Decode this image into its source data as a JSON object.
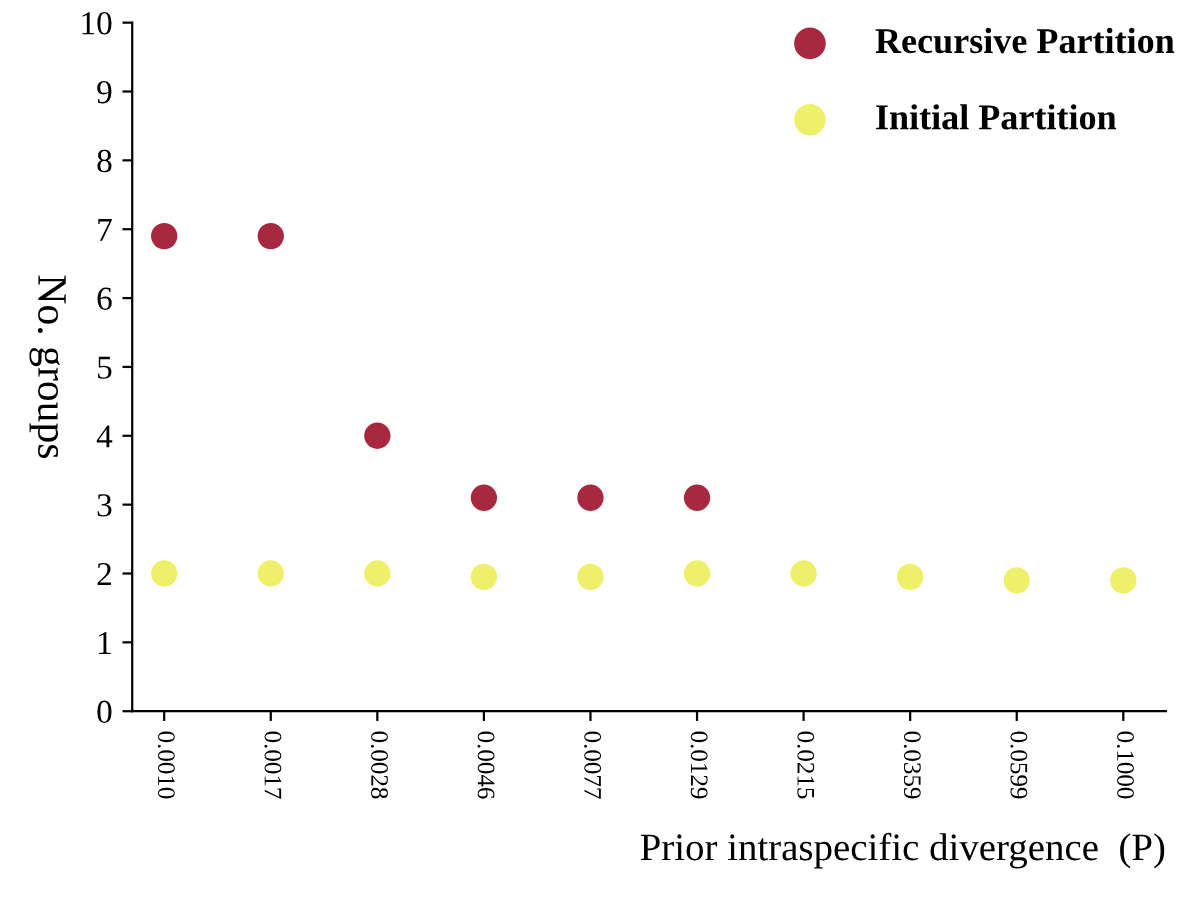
{
  "chart_data": {
    "type": "scatter",
    "xlabel": "Prior intraspecific divergence  (P)",
    "ylabel": "No. groups",
    "categories": [
      "0.0010",
      "0.0017",
      "0.0028",
      "0.0046",
      "0.0077",
      "0.0129",
      "0.0215",
      "0.0359",
      "0.0599",
      "0.1000"
    ],
    "series": [
      {
        "name": "Recursive Partition",
        "color": "#a8283f",
        "values": [
          6.9,
          6.9,
          4.0,
          3.1,
          3.1,
          3.1,
          null,
          null,
          null,
          null
        ]
      },
      {
        "name": "Initial Partition",
        "color": "#eef06a",
        "values": [
          2.0,
          2.0,
          2.0,
          1.95,
          1.95,
          2.0,
          2.0,
          1.95,
          1.9,
          1.9
        ]
      }
    ],
    "ylim": [
      0,
      10
    ],
    "yticks": [
      0,
      1,
      2,
      3,
      4,
      5,
      6,
      7,
      8,
      9,
      10
    ],
    "marker": "circle",
    "legend": "top right",
    "grid": false
  }
}
